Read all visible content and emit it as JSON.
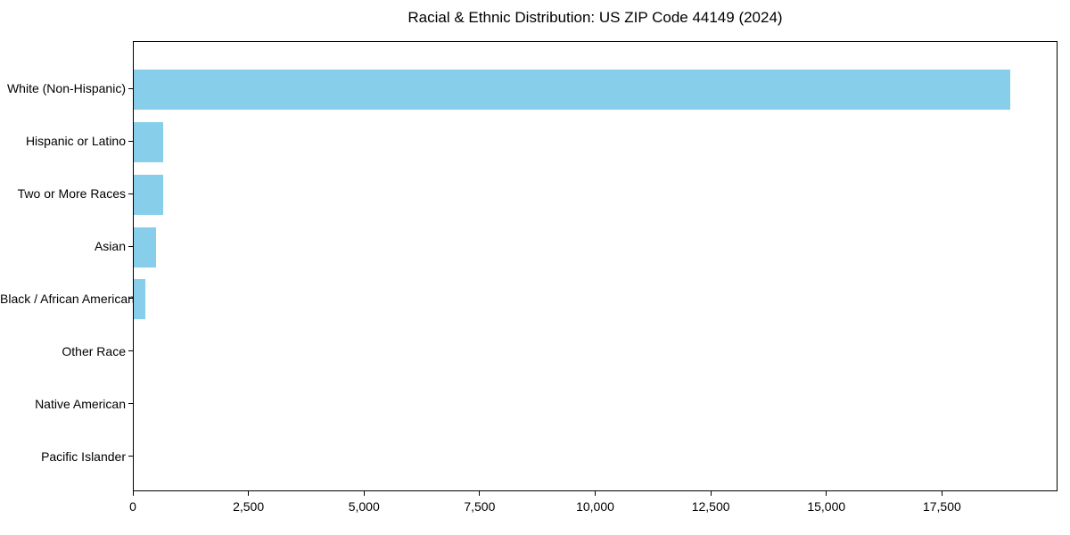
{
  "chart_data": {
    "type": "bar",
    "orientation": "horizontal",
    "title": "Racial & Ethnic Distribution: US ZIP Code 44149 (2024)",
    "categories": [
      "White (Non-Hispanic)",
      "Hispanic or Latino",
      "Two or More Races",
      "Asian",
      "Black / African American",
      "Other Race",
      "Native American",
      "Pacific Islander"
    ],
    "values": [
      19000,
      640,
      630,
      480,
      250,
      0,
      0,
      0
    ],
    "xlabel": "",
    "ylabel": "",
    "xlim": [
      0,
      20000
    ],
    "xticks": [
      0,
      2500,
      5000,
      7500,
      10000,
      12500,
      15000,
      17500
    ],
    "xtick_labels": [
      "0",
      "2,500",
      "5,000",
      "7,500",
      "10,000",
      "12,500",
      "15,000",
      "17,500"
    ],
    "bar_color": "#87CEEB",
    "spine_color": "#000000",
    "text_color": "#000000",
    "background_color": "#ffffff",
    "grid": false,
    "legend": "none"
  }
}
